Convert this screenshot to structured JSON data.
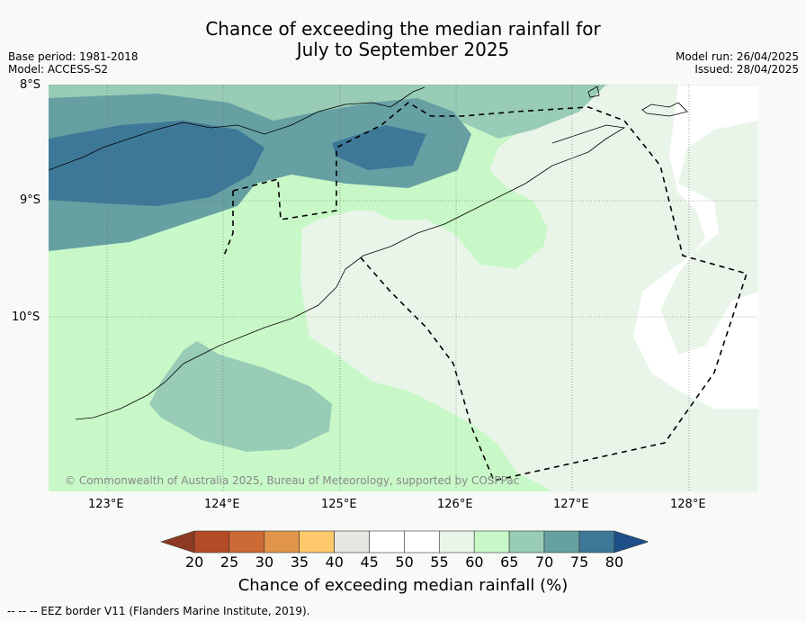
{
  "title_line1": "Chance of exceeding the median rainfall for",
  "title_line2": "July to September 2025",
  "base_period": "Base period: 1981-2018",
  "model": "Model: ACCESS-S2",
  "model_run": "Model run: 26/04/2025",
  "issued": "Issued: 28/04/2025",
  "copyright": "© Commonwealth of Australia 2025, Bureau of Meteorology, supported by COSPPac",
  "lat_labels": [
    "8°S",
    "9°S",
    "10°S"
  ],
  "lon_labels": [
    "123°E",
    "124°E",
    "125°E",
    "126°E",
    "127°E",
    "128°E"
  ],
  "colorbar": {
    "title": "Chance of exceeding median rainfall (%)",
    "ticks": [
      "20",
      "25",
      "30",
      "35",
      "40",
      "45",
      "50",
      "55",
      "60",
      "65",
      "70",
      "75",
      "80"
    ],
    "colors": [
      "#8c3a21",
      "#b54a26",
      "#cc6a35",
      "#e0954b",
      "#fdc96a",
      "#e8e6e1",
      "#ffffff",
      "#ffffff",
      "#eaf5e9",
      "#c8f8c8",
      "#98ccb6",
      "#66a0a3",
      "#3e7898",
      "#1e4f88"
    ]
  },
  "legend_note": "--  --  -- EEZ border V11 (Flanders Marine Institute, 2019)."
}
